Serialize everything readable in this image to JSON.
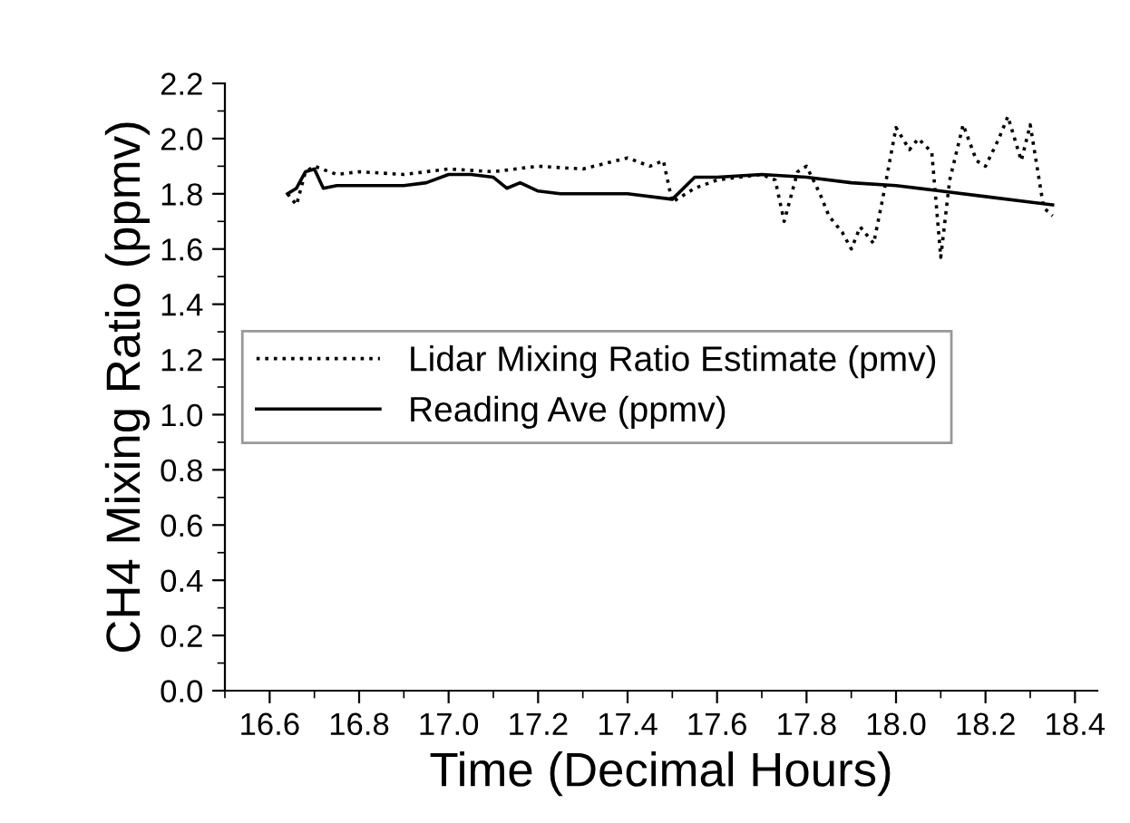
{
  "chart_data": {
    "type": "line",
    "xlabel": "Time (Decimal Hours)",
    "ylabel": "CH4 Mixing Ratio (ppmv)",
    "xlim": [
      16.5,
      18.45
    ],
    "ylim": [
      0,
      2.2
    ],
    "xticks": [
      16.6,
      16.8,
      {
        "value": 17.0,
        "label": "17.0"
      },
      17.2,
      17.4,
      17.6,
      17.8,
      {
        "value": 18.0,
        "label": "18.0"
      },
      18.2,
      18.4
    ],
    "yticks": [
      {
        "value": 0,
        "label": "0.0"
      },
      0.2,
      0.4,
      0.6,
      0.8,
      {
        "value": 1,
        "label": "1.0"
      },
      1.2,
      1.4,
      1.6,
      1.8,
      {
        "value": 2,
        "label": "2.0"
      },
      2.2
    ],
    "grid": false,
    "legend": "center left",
    "series": [
      {
        "name": "Lidar Mixing Ratio Estimate (pmv)",
        "color": "#000000",
        "line_style": "dotted",
        "x": [
          16.64,
          16.66,
          16.68,
          16.7,
          16.75,
          16.8,
          16.9,
          17.0,
          17.1,
          17.2,
          17.3,
          17.35,
          17.4,
          17.45,
          17.48,
          17.5,
          17.55,
          17.6,
          17.65,
          17.7,
          17.73,
          17.75,
          17.78,
          17.8,
          17.83,
          17.85,
          17.88,
          17.9,
          17.92,
          17.95,
          17.97,
          18.0,
          18.03,
          18.05,
          18.08,
          18.1,
          18.12,
          18.15,
          18.18,
          18.2,
          18.23,
          18.25,
          18.28,
          18.3,
          18.33,
          18.35
        ],
        "values": [
          1.8,
          1.76,
          1.88,
          1.9,
          1.87,
          1.88,
          1.87,
          1.89,
          1.88,
          1.9,
          1.89,
          1.91,
          1.93,
          1.9,
          1.92,
          1.77,
          1.82,
          1.85,
          1.86,
          1.87,
          1.85,
          1.7,
          1.88,
          1.9,
          1.8,
          1.72,
          1.66,
          1.6,
          1.68,
          1.62,
          1.78,
          2.04,
          1.96,
          2.0,
          1.95,
          1.57,
          1.85,
          2.05,
          1.92,
          1.9,
          2.0,
          2.08,
          1.92,
          2.05,
          1.75,
          1.72
        ]
      },
      {
        "name": "Reading Ave (ppmv)",
        "color": "#000000",
        "line_style": "solid",
        "x": [
          16.64,
          16.66,
          16.68,
          16.7,
          16.72,
          16.75,
          16.8,
          16.9,
          16.95,
          17.0,
          17.05,
          17.1,
          17.13,
          17.16,
          17.2,
          17.25,
          17.3,
          17.4,
          17.5,
          17.55,
          17.6,
          17.7,
          17.8,
          17.9,
          18.0,
          18.1,
          18.2,
          18.3,
          18.35
        ],
        "values": [
          1.8,
          1.82,
          1.88,
          1.89,
          1.82,
          1.83,
          1.83,
          1.83,
          1.84,
          1.87,
          1.87,
          1.86,
          1.82,
          1.84,
          1.81,
          1.8,
          1.8,
          1.8,
          1.78,
          1.86,
          1.86,
          1.87,
          1.86,
          1.84,
          1.83,
          1.81,
          1.79,
          1.77,
          1.76
        ]
      }
    ]
  }
}
